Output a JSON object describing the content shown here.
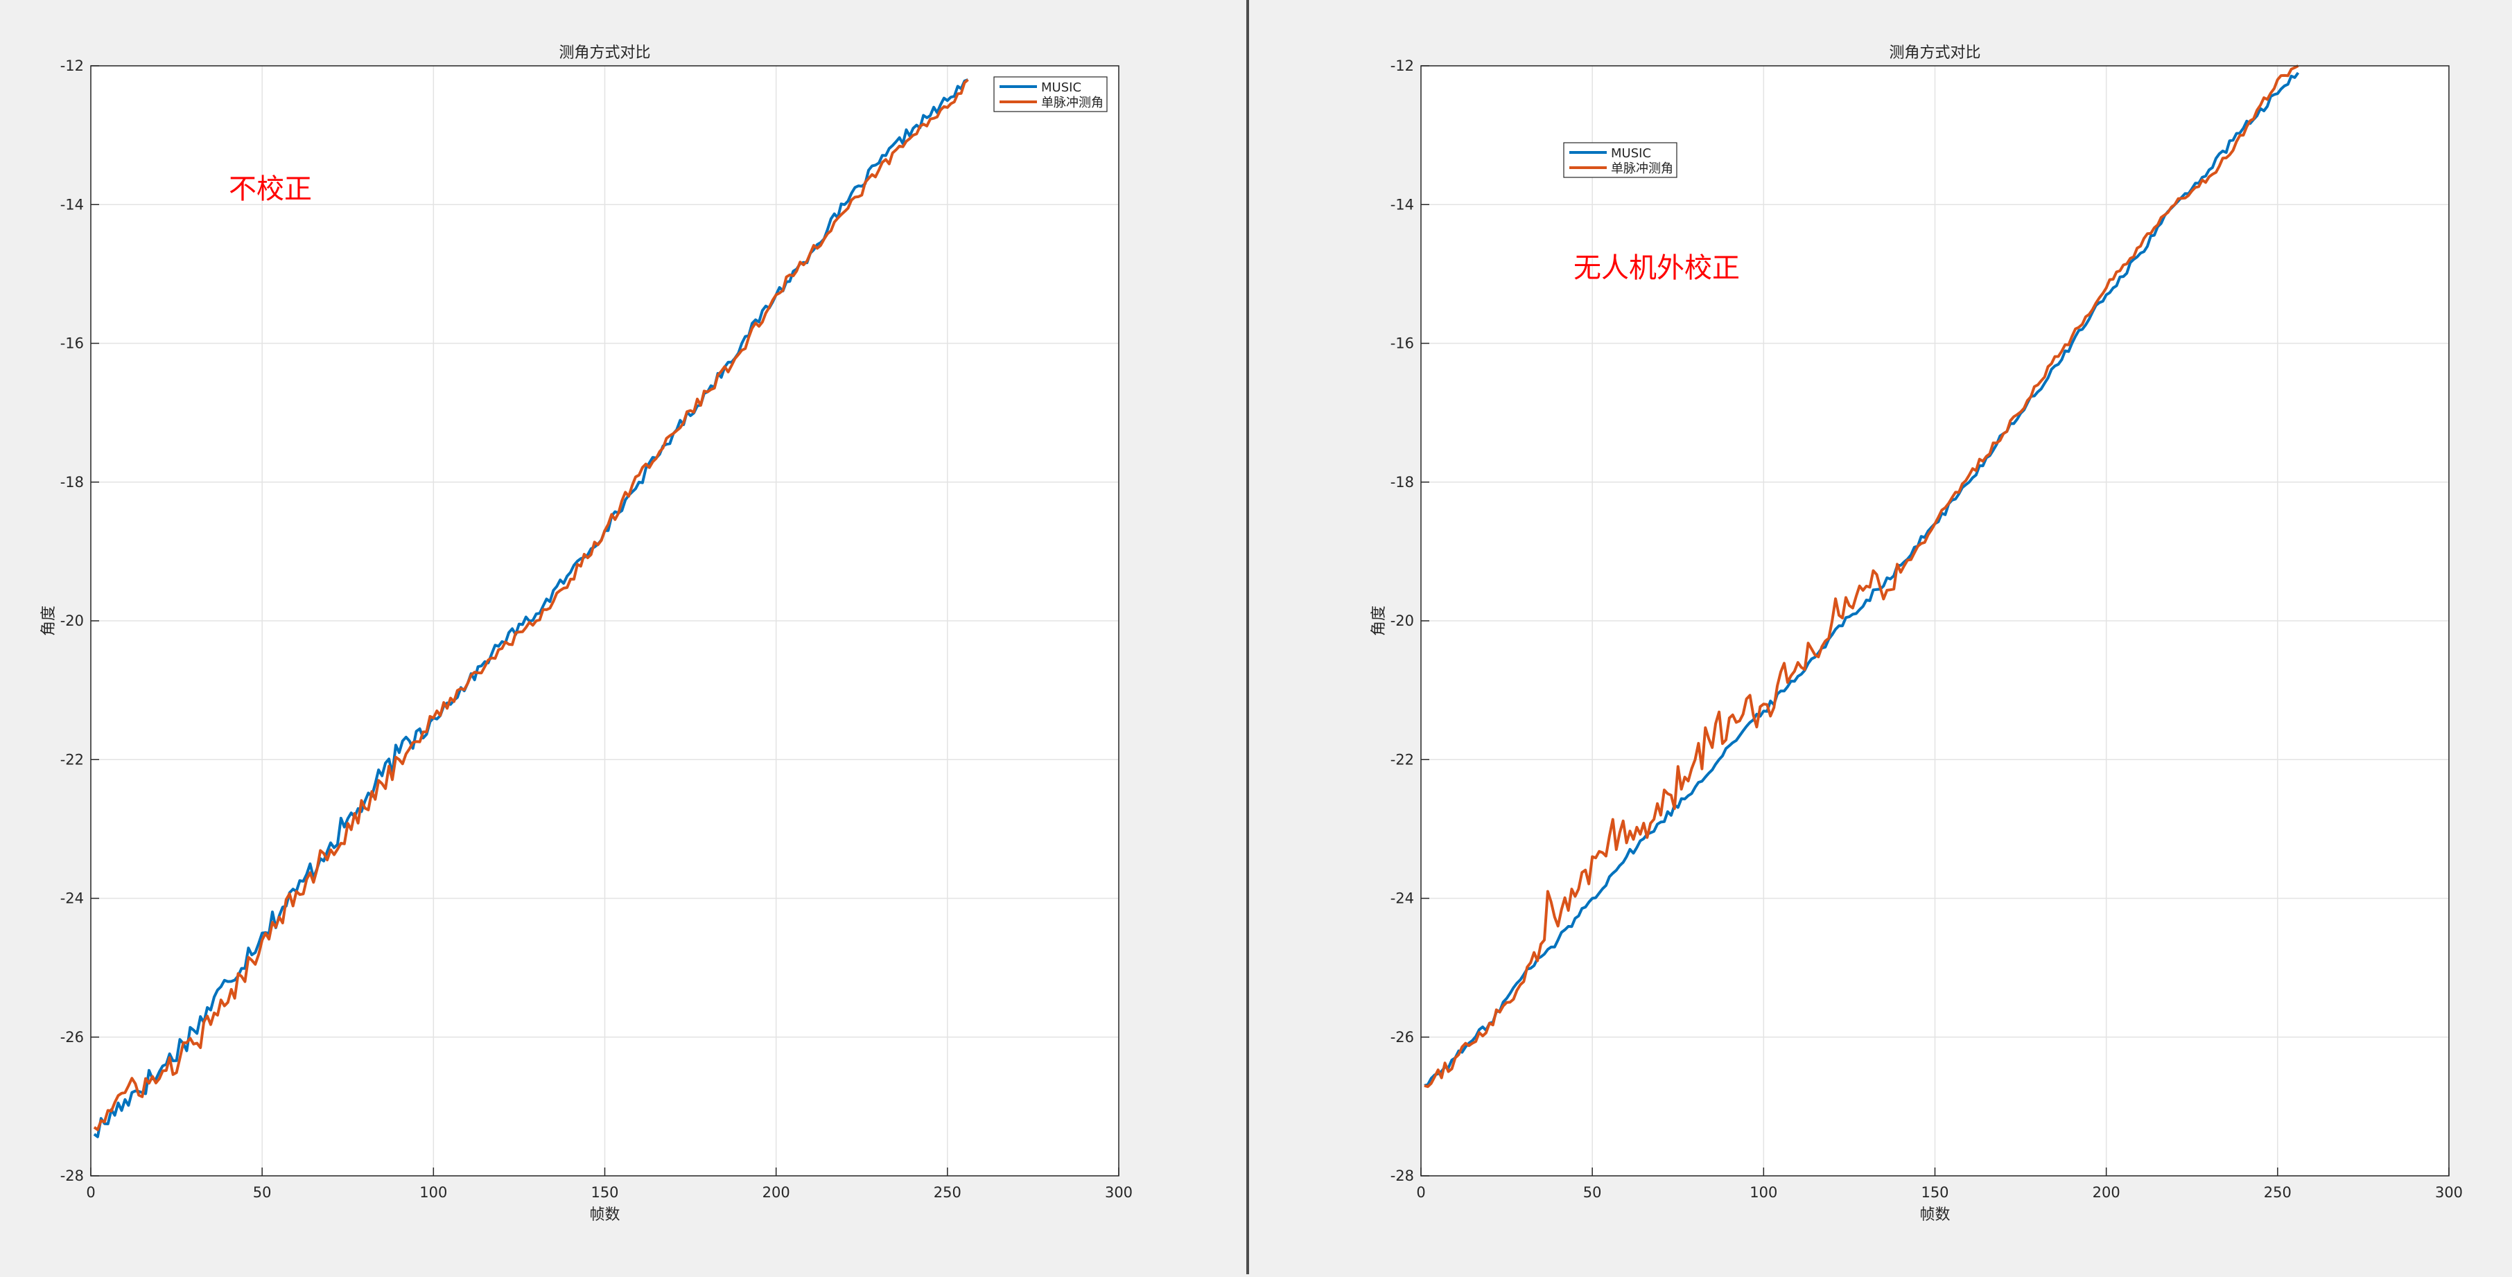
{
  "colors": {
    "background": "#f0f0f0",
    "axes_background": "#ffffff",
    "grid": "#e3e3e3",
    "axis": "#262626",
    "divider": "#4d4d4d",
    "annotation": "#ff0000",
    "series_music": "#0072bd",
    "series_monopulse": "#d95319"
  },
  "chart_data": [
    {
      "type": "line",
      "title": "测角方式对比",
      "xlabel": "帧数",
      "ylabel": "角度",
      "xlim": [
        0,
        300
      ],
      "ylim": [
        -28,
        -12
      ],
      "xticks": [
        "0",
        "50",
        "100",
        "150",
        "200",
        "250",
        "300"
      ],
      "yticks": [
        "-12",
        "-14",
        "-16",
        "-18",
        "-20",
        "-22",
        "-24",
        "-26",
        "-28"
      ],
      "grid": true,
      "legend_position": "top-right",
      "annotation": "不校正",
      "series": [
        {
          "name": "MUSIC",
          "color": "#0072bd",
          "x": [
            1,
            10,
            20,
            30,
            40,
            50,
            60,
            70,
            80,
            90,
            100,
            110,
            120,
            130,
            140,
            150,
            160,
            170,
            180,
            190,
            200,
            210,
            220,
            230,
            240,
            250,
            256
          ],
          "y": [
            -27.4,
            -26.9,
            -26.5,
            -25.9,
            -25.2,
            -24.5,
            -23.9,
            -23.2,
            -22.6,
            -21.9,
            -21.4,
            -20.9,
            -20.3,
            -19.9,
            -19.3,
            -18.7,
            -18.0,
            -17.3,
            -16.7,
            -16.0,
            -15.3,
            -14.7,
            -14.0,
            -13.4,
            -12.9,
            -12.5,
            -12.2
          ]
        },
        {
          "name": "单脉冲测角",
          "color": "#d95319",
          "x": [
            1,
            10,
            20,
            30,
            40,
            50,
            60,
            70,
            80,
            90,
            100,
            110,
            120,
            130,
            140,
            150,
            160,
            170,
            180,
            190,
            200,
            210,
            220,
            230,
            240,
            250,
            256
          ],
          "y": [
            -27.3,
            -26.8,
            -26.6,
            -26.1,
            -25.5,
            -24.6,
            -23.9,
            -23.3,
            -22.7,
            -22.0,
            -21.4,
            -20.9,
            -20.4,
            -20.0,
            -19.4,
            -18.7,
            -17.9,
            -17.3,
            -16.7,
            -16.1,
            -15.3,
            -14.7,
            -14.1,
            -13.5,
            -13.0,
            -12.6,
            -12.2
          ]
        }
      ]
    },
    {
      "type": "line",
      "title": "测角方式对比",
      "xlabel": "帧数",
      "ylabel": "角度",
      "xlim": [
        0,
        300
      ],
      "ylim": [
        -28,
        -12
      ],
      "xticks": [
        "0",
        "50",
        "100",
        "150",
        "200",
        "250",
        "300"
      ],
      "yticks": [
        "-12",
        "-14",
        "-16",
        "-18",
        "-20",
        "-22",
        "-24",
        "-26",
        "-28"
      ],
      "grid": true,
      "legend_position": "top-left",
      "annotation": "无人机外校正",
      "series": [
        {
          "name": "MUSIC",
          "color": "#0072bd",
          "x": [
            1,
            10,
            20,
            30,
            40,
            50,
            60,
            70,
            80,
            90,
            100,
            110,
            120,
            130,
            140,
            150,
            160,
            170,
            180,
            190,
            200,
            210,
            220,
            230,
            240,
            250,
            256
          ],
          "y": [
            -26.7,
            -26.3,
            -25.8,
            -25.1,
            -24.6,
            -24.0,
            -23.4,
            -22.9,
            -22.4,
            -21.8,
            -21.3,
            -20.8,
            -20.2,
            -19.7,
            -19.2,
            -18.6,
            -18.0,
            -17.3,
            -16.7,
            -16.0,
            -15.3,
            -14.7,
            -14.0,
            -13.5,
            -12.9,
            -12.4,
            -12.1
          ]
        },
        {
          "name": "单脉冲测角",
          "color": "#d95319",
          "x": [
            1,
            10,
            20,
            30,
            36,
            37,
            40,
            50,
            55,
            60,
            70,
            80,
            84,
            90,
            100,
            110,
            120,
            130,
            140,
            150,
            160,
            170,
            180,
            190,
            200,
            210,
            220,
            230,
            240,
            250,
            256
          ],
          "y": [
            -26.7,
            -26.3,
            -25.8,
            -25.2,
            -24.6,
            -23.9,
            -24.4,
            -23.4,
            -23.1,
            -23.2,
            -22.8,
            -22.0,
            -21.7,
            -21.4,
            -21.2,
            -20.6,
            -20.0,
            -19.5,
            -19.3,
            -18.6,
            -17.9,
            -17.3,
            -16.6,
            -15.9,
            -15.2,
            -14.6,
            -14.0,
            -13.6,
            -13.0,
            -12.2,
            -12.0
          ]
        }
      ]
    }
  ]
}
